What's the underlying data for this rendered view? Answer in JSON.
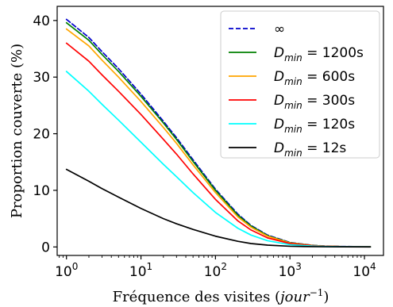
{
  "chart_data": {
    "type": "line",
    "xlabel": "Fréquence des visites (jour⁻¹)",
    "xlabel_parts": {
      "main": "Fréquence des visites (",
      "italic": "jour",
      "sup": "−1",
      "close": ")"
    },
    "ylabel": "Proportion couverte (%)",
    "xscale": "log",
    "xlim": [
      0.75,
      18000
    ],
    "ylim": [
      -1.5,
      42.5
    ],
    "xticks": [
      {
        "value": 1,
        "base": "10",
        "exp": "0"
      },
      {
        "value": 10,
        "base": "10",
        "exp": "1"
      },
      {
        "value": 100,
        "base": "10",
        "exp": "2"
      },
      {
        "value": 1000,
        "base": "10",
        "exp": "3"
      },
      {
        "value": 10000,
        "base": "10",
        "exp": "4"
      }
    ],
    "yticks": [
      0,
      10,
      20,
      30,
      40
    ],
    "grid": false,
    "legend_position": "top-right",
    "series": [
      {
        "name": "∞",
        "legend_main": "∞",
        "legend_sub": "",
        "legend_rest": "",
        "color": "#0000cc",
        "dash": true,
        "x": [
          1,
          2,
          3,
          5,
          10,
          20,
          30,
          50,
          100,
          200,
          300,
          500,
          1000,
          2000,
          3000,
          5000,
          12000
        ],
        "y": [
          40.2,
          37.0,
          34.5,
          31.5,
          27.0,
          22.2,
          19.3,
          15.4,
          10.2,
          5.8,
          3.8,
          2.1,
          0.8,
          0.3,
          0.15,
          0.08,
          0.05
        ]
      },
      {
        "name": "Dmin = 1200s",
        "legend_main": "D",
        "legend_sub": "min",
        "legend_rest": " = 1200s",
        "color": "#008000",
        "dash": false,
        "x": [
          1,
          2,
          3,
          5,
          10,
          20,
          30,
          50,
          100,
          200,
          300,
          500,
          1000,
          2000,
          3000,
          5000,
          12000
        ],
        "y": [
          39.6,
          36.5,
          34.0,
          31.0,
          26.6,
          21.9,
          19.0,
          15.1,
          10.0,
          5.6,
          3.7,
          2.0,
          0.75,
          0.28,
          0.14,
          0.07,
          0.04
        ]
      },
      {
        "name": "Dmin = 600s",
        "legend_main": "D",
        "legend_sub": "min",
        "legend_rest": " = 600s",
        "color": "#ffa500",
        "dash": false,
        "x": [
          1,
          2,
          3,
          5,
          10,
          20,
          30,
          50,
          100,
          200,
          300,
          500,
          1000,
          2000,
          3000,
          5000,
          12000
        ],
        "y": [
          38.5,
          35.5,
          33.0,
          30.0,
          25.7,
          21.1,
          18.3,
          14.5,
          9.6,
          5.3,
          3.5,
          1.9,
          0.7,
          0.26,
          0.13,
          0.07,
          0.04
        ]
      },
      {
        "name": "Dmin = 300s",
        "legend_main": "D",
        "legend_sub": "min",
        "legend_rest": " = 300s",
        "color": "#ff0000",
        "dash": false,
        "x": [
          1,
          2,
          3,
          5,
          10,
          20,
          30,
          50,
          100,
          200,
          300,
          500,
          1000,
          2000,
          3000,
          5000,
          12000
        ],
        "y": [
          36.0,
          32.8,
          30.4,
          27.5,
          23.4,
          19.0,
          16.4,
          12.9,
          8.4,
          4.6,
          3.0,
          1.6,
          0.6,
          0.22,
          0.11,
          0.06,
          0.03
        ]
      },
      {
        "name": "Dmin = 120s",
        "legend_main": "D",
        "legend_sub": "min",
        "legend_rest": " = 120s",
        "color": "#00ffff",
        "dash": false,
        "x": [
          1,
          2,
          3,
          5,
          10,
          20,
          30,
          50,
          100,
          200,
          300,
          500,
          1000,
          2000,
          3000,
          5000,
          12000
        ],
        "y": [
          31.0,
          27.5,
          25.2,
          22.4,
          18.5,
          14.6,
          12.4,
          9.6,
          6.1,
          3.3,
          2.1,
          1.1,
          0.4,
          0.15,
          0.08,
          0.04,
          0.02
        ]
      },
      {
        "name": "Dmin = 12s",
        "legend_main": "D",
        "legend_sub": "min",
        "legend_rest": " = 12s",
        "color": "#000000",
        "dash": false,
        "x": [
          1,
          2,
          3,
          5,
          10,
          20,
          30,
          50,
          100,
          200,
          300,
          500,
          1000,
          2000,
          3000,
          5000,
          12000
        ],
        "y": [
          13.7,
          11.6,
          10.3,
          8.8,
          6.8,
          5.0,
          4.1,
          3.1,
          1.9,
          1.0,
          0.6,
          0.32,
          0.12,
          0.05,
          0.03,
          0.02,
          0.01
        ]
      }
    ]
  }
}
